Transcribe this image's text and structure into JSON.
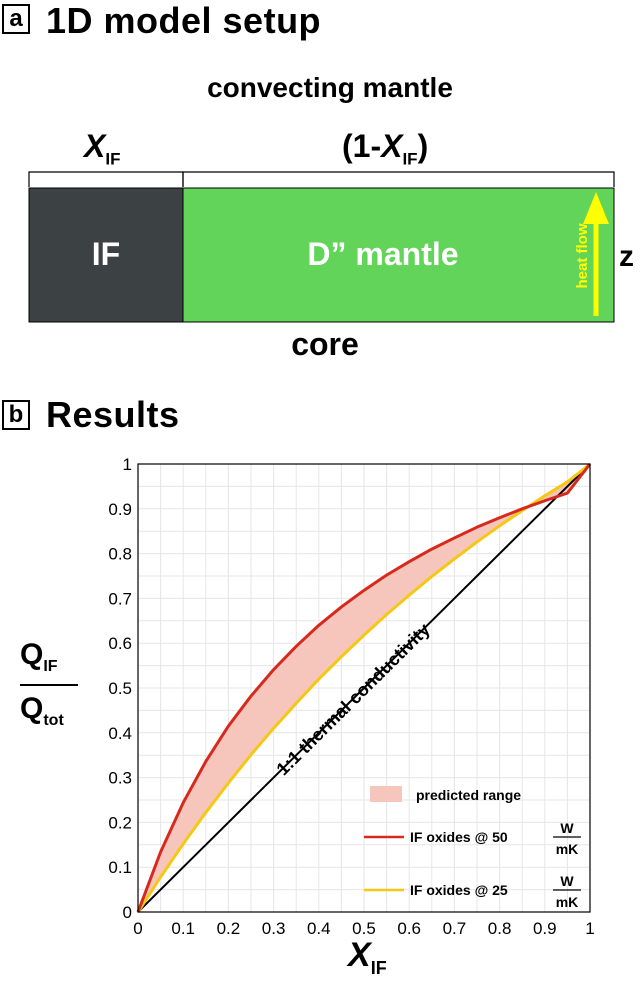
{
  "panel_a": {
    "tag": "a",
    "title": "1D model setup",
    "top_label": "convecting mantle",
    "bottom_label": "core",
    "xif_main": "X",
    "xif_sub": "IF",
    "right_open": "(1-",
    "right_x": "X",
    "right_sub": "IF",
    "right_close": ")",
    "if_block_label": "IF",
    "mantle_label": "D” mantle",
    "arrow_label": "heat flow",
    "z_label": "z",
    "colors": {
      "if_block": "#3c4143",
      "mantle": "#62d45a",
      "arrow": "#ffff00"
    }
  },
  "panel_b": {
    "tag": "b",
    "title": "Results",
    "ylabel_num_main": "Q",
    "ylabel_num_sub": "IF",
    "ylabel_den_main": "Q",
    "ylabel_den_sub": "tot",
    "xlabel_main": "X",
    "xlabel_sub": "IF",
    "diagonal_label": "1:1 thermal conductivity",
    "legend": {
      "range_label": "predicted range",
      "red_label": "IF oxides @ 50",
      "yellow_label": "IF oxides @ 25",
      "unit_num": "W",
      "unit_den": "mK"
    }
  },
  "chart_data": {
    "type": "line",
    "xlim": [
      0,
      1
    ],
    "ylim": [
      0,
      1
    ],
    "grid": true,
    "legend_position": "bottom-right",
    "x_ticks": [
      "0",
      "0.1",
      "0.2",
      "0.3",
      "0.4",
      "0.5",
      "0.6",
      "0.7",
      "0.8",
      "0.9",
      "1"
    ],
    "y_ticks": [
      "0",
      "0.1",
      "0.2",
      "0.3",
      "0.4",
      "0.5",
      "0.6",
      "0.7",
      "0.8",
      "0.9",
      "1"
    ],
    "x": [
      0,
      0.05,
      0.1,
      0.15,
      0.2,
      0.25,
      0.3,
      0.35,
      0.4,
      0.45,
      0.5,
      0.55,
      0.6,
      0.65,
      0.7,
      0.75,
      0.8,
      0.85,
      0.9,
      0.95,
      1
    ],
    "series": [
      {
        "name": "IF oxides @ 50 W/mK",
        "color": "#d62a1e",
        "values": [
          0,
          0.134,
          0.244,
          0.336,
          0.415,
          0.482,
          0.541,
          0.593,
          0.64,
          0.681,
          0.718,
          0.752,
          0.782,
          0.81,
          0.835,
          0.859,
          0.88,
          0.9,
          0.918,
          0.935,
          1.0
        ]
      },
      {
        "name": "IF oxides @ 25 W/mK",
        "color": "#f5c814",
        "values": [
          0,
          0.078,
          0.152,
          0.222,
          0.288,
          0.351,
          0.41,
          0.466,
          0.52,
          0.57,
          0.618,
          0.664,
          0.707,
          0.749,
          0.788,
          0.826,
          0.862,
          0.896,
          0.929,
          0.96,
          1.0
        ]
      },
      {
        "name": "1:1 thermal conductivity",
        "color": "#000000",
        "values": [
          0,
          0.05,
          0.1,
          0.15,
          0.2,
          0.25,
          0.3,
          0.35,
          0.4,
          0.45,
          0.5,
          0.55,
          0.6,
          0.65,
          0.7,
          0.75,
          0.8,
          0.85,
          0.9,
          0.95,
          1.0
        ]
      }
    ],
    "shaded_region": {
      "name": "predicted range",
      "between": [
        "IF oxides @ 50 W/mK",
        "IF oxides @ 25 W/mK"
      ],
      "color": "#f6c6bd"
    }
  }
}
